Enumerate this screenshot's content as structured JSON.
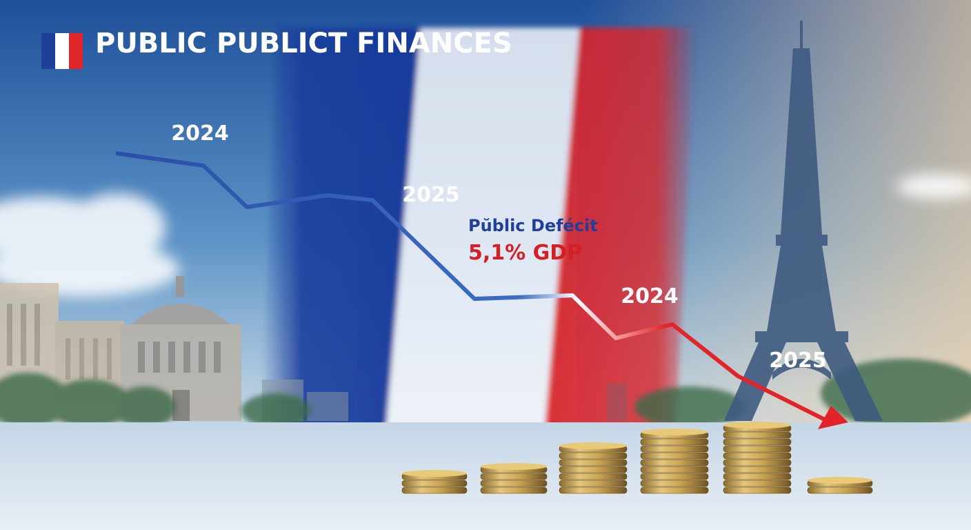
{
  "header": {
    "title": "PUBLIC PUBLICT FINANCES"
  },
  "labels": [
    "2024",
    "2025",
    "2024",
    "2025"
  ],
  "callout": {
    "title": "Pŭblic Defécit",
    "value": "5,1% GDP"
  }
}
